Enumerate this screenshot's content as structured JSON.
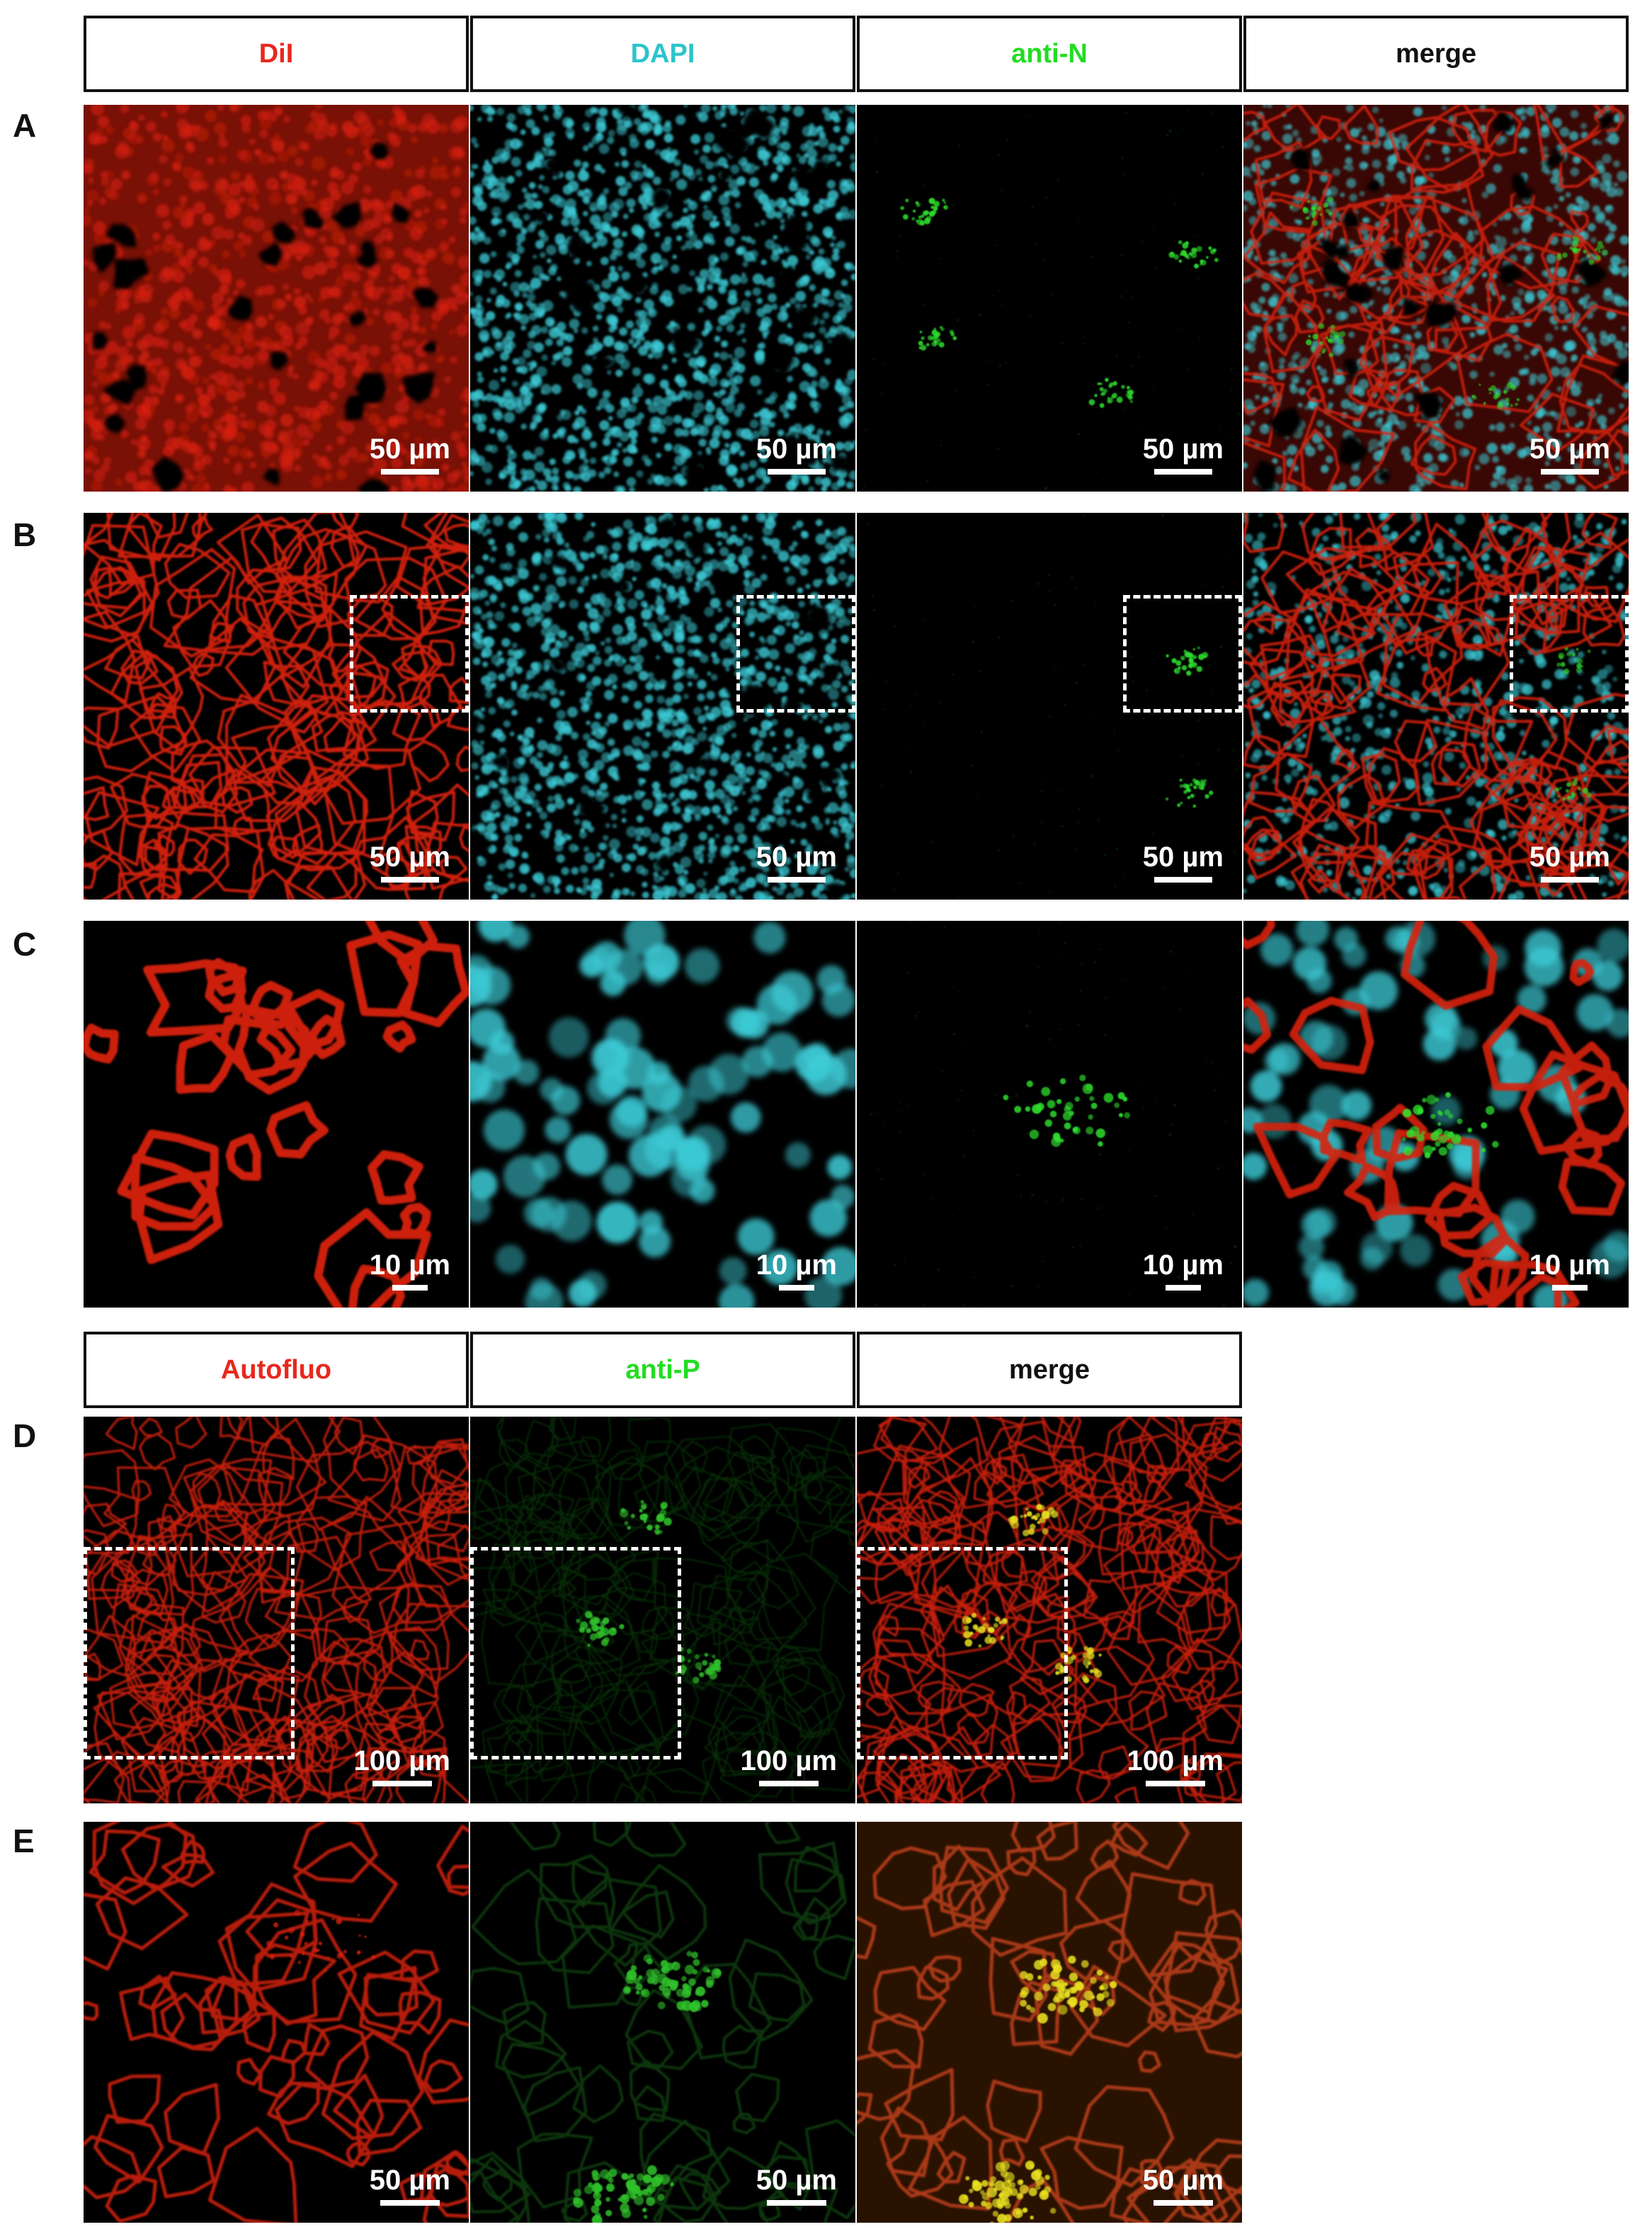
{
  "headers_top": [
    {
      "label": "DiI",
      "color": "#e8281e"
    },
    {
      "label": "DAPI",
      "color": "#2cc4cc"
    },
    {
      "label": "anti-N",
      "color": "#22dd22"
    },
    {
      "label": "merge",
      "color": "#111111"
    }
  ],
  "headers_bottom": [
    {
      "label": "Autofluo",
      "color": "#e8281e"
    },
    {
      "label": "anti-P",
      "color": "#22dd22"
    },
    {
      "label": "merge",
      "color": "#111111"
    }
  ],
  "rows": {
    "A": {
      "label": "A",
      "scale": "50 µm"
    },
    "B": {
      "label": "B",
      "scale": "50 µm"
    },
    "C": {
      "label": "C",
      "scale": "10 µm"
    },
    "D": {
      "label": "D",
      "scale": "100 µm"
    },
    "E": {
      "label": "E",
      "scale": "50 µm"
    }
  },
  "channel_colors": {
    "dii": "#d8200e",
    "dapi": "#3ccbd6",
    "anti_n": "#2ee02e",
    "autofluo": "#d8200e",
    "anti_p": "#2fc22a",
    "overlap": "#e8e020"
  }
}
